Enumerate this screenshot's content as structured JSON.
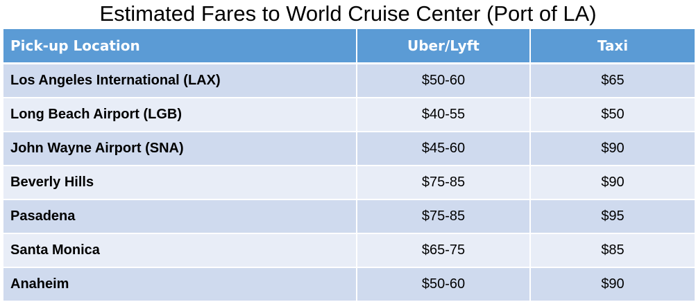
{
  "title": "Estimated Fares to World Cruise Center (Port of LA)",
  "colors": {
    "header_bg": "#5b9bd5",
    "header_text": "#ffffff",
    "row_odd_bg": "#cfdaee",
    "row_even_bg": "#e8edf7"
  },
  "table": {
    "headers": [
      "Pick-up Location",
      "Uber/Lyft",
      "Taxi"
    ],
    "rows": [
      {
        "location": "Los Angeles International (LAX)",
        "uber_lyft": "$50-60",
        "taxi": "$65"
      },
      {
        "location": "Long Beach Airport (LGB)",
        "uber_lyft": "$40-55",
        "taxi": "$50"
      },
      {
        "location": "John Wayne Airport (SNA)",
        "uber_lyft": "$45-60",
        "taxi": "$90"
      },
      {
        "location": "Beverly Hills",
        "uber_lyft": "$75-85",
        "taxi": "$90"
      },
      {
        "location": "Pasadena",
        "uber_lyft": "$75-85",
        "taxi": "$95"
      },
      {
        "location": "Santa Monica",
        "uber_lyft": "$65-75",
        "taxi": "$85"
      },
      {
        "location": "Anaheim",
        "uber_lyft": "$50-60",
        "taxi": "$90"
      }
    ]
  }
}
